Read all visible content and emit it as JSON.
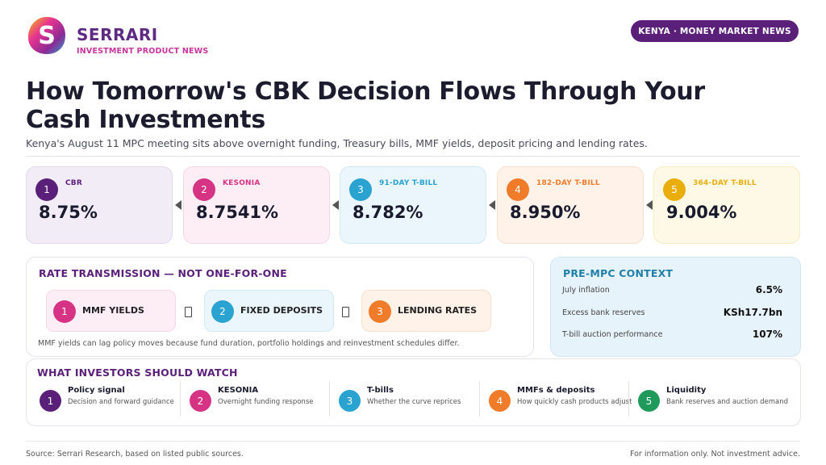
{
  "brand": {
    "name": "SERRARI",
    "sub": "INVESTMENT PRODUCT NEWS",
    "logo_letter": "S"
  },
  "tag": "KENYA · MONEY MARKET NEWS",
  "headline": "How Tomorrow's CBK Decision Flows Through Your Cash Investments",
  "subheadline": "Kenya's August 11 MPC meeting sits above overnight funding, Treasury bills, MMF yields, deposit pricing and lending rates.",
  "rates": [
    {
      "num": "1",
      "label": "CBR",
      "value": "8.75%",
      "color": "#5a1f78",
      "bg": "#f1ecf6",
      "border": "#e2d9ee"
    },
    {
      "num": "2",
      "label": "KESONIA",
      "value": "8.7541%",
      "color": "#d63384",
      "bg": "#fdeef5",
      "border": "#f6d7e6"
    },
    {
      "num": "3",
      "label": "91-DAY T-BILL",
      "value": "8.782%",
      "color": "#2aa3d0",
      "bg": "#eaf6fb",
      "border": "#d2eaf4"
    },
    {
      "num": "4",
      "label": "182-DAY T-BILL",
      "value": "8.950%",
      "color": "#f07c2a",
      "bg": "#fef2e9",
      "border": "#f9e0cc"
    },
    {
      "num": "5",
      "label": "364-DAY T-BILL",
      "value": "9.004%",
      "color": "#e9ad0c",
      "bg": "#fef9e6",
      "border": "#f7ecc4"
    }
  ],
  "transmission": {
    "title": "RATE TRANSMISSION — NOT ONE-FOR-ONE",
    "items": [
      {
        "num": "1",
        "label": "MMF YIELDS",
        "color": "#d63384",
        "bg": "#fdeef5",
        "border": "#f6d7e6"
      },
      {
        "num": "2",
        "label": "FIXED DEPOSITS",
        "color": "#2aa3d0",
        "bg": "#eaf6fb",
        "border": "#d2eaf4"
      },
      {
        "num": "3",
        "label": "LENDING RATES",
        "color": "#f07c2a",
        "bg": "#fef2e9",
        "border": "#f9e0cc"
      }
    ],
    "note": "MMF yields can lag policy moves because fund duration, portfolio holdings and reinvestment schedules differ."
  },
  "context": {
    "title": "PRE-MPC CONTEXT",
    "rows": [
      {
        "key": "July inflation",
        "value": "6.5%"
      },
      {
        "key": "Excess bank reserves",
        "value": "KSh17.7bn"
      },
      {
        "key": "T-bill auction performance",
        "value": "107%"
      }
    ]
  },
  "watch": {
    "title": "WHAT INVESTORS SHOULD WATCH",
    "items": [
      {
        "num": "1",
        "title": "Policy signal",
        "desc": "Decision and forward guidance",
        "color": "#5a1f78"
      },
      {
        "num": "2",
        "title": "KESONIA",
        "desc": "Overnight funding response",
        "color": "#d63384"
      },
      {
        "num": "3",
        "title": "T-bills",
        "desc": "Whether the curve reprices",
        "color": "#2aa3d0"
      },
      {
        "num": "4",
        "title": "MMFs & deposits",
        "desc": "How quickly cash products adjust",
        "color": "#f07c2a"
      },
      {
        "num": "5",
        "title": "Liquidity",
        "desc": "Bank reserves and auction demand",
        "color": "#1f9a5a"
      }
    ]
  },
  "footer": {
    "source": "Source: Serrari Research, based on listed public sources.",
    "disclaimer": "For information only. Not investment advice."
  },
  "colors": {
    "brand_purple": "#5a1f78",
    "brand_pink": "#c8349a",
    "transmission_title": "#5a1f78",
    "context_title": "#1f7fa8"
  }
}
